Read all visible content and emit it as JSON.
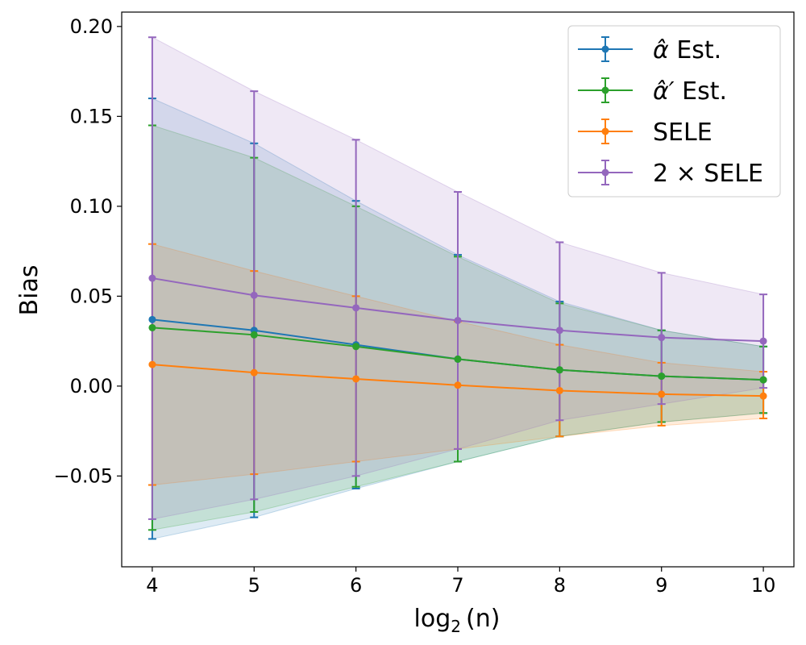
{
  "chart_data": {
    "type": "line",
    "xlabel": "log₂(n)",
    "xlabel_base": "log",
    "xlabel_sub": "2",
    "xlabel_arg": "(n)",
    "ylabel": "Bias",
    "x": [
      4,
      5,
      6,
      7,
      8,
      9,
      10
    ],
    "xlim": [
      3.7,
      10.3
    ],
    "ylim": [
      -0.1005,
      0.208
    ],
    "xticks": [
      "4",
      "5",
      "6",
      "7",
      "8",
      "9",
      "10"
    ],
    "yticks": [
      {
        "value": -0.05,
        "label": "−0.05"
      },
      {
        "value": 0.0,
        "label": "0.00"
      },
      {
        "value": 0.05,
        "label": "0.05"
      },
      {
        "value": 0.1,
        "label": "0.10"
      },
      {
        "value": 0.15,
        "label": "0.15"
      },
      {
        "value": 0.2,
        "label": "0.20"
      }
    ],
    "grid": false,
    "legend_position": "top-right",
    "series": [
      {
        "name_main": "α̂",
        "name_suffix": " Est.",
        "color": "#1f77b4",
        "values": [
          0.037,
          0.031,
          0.023,
          0.015,
          0.009,
          0.0055,
          0.0035
        ],
        "lower": [
          -0.085,
          -0.073,
          -0.057,
          -0.042,
          -0.028,
          -0.02,
          -0.015
        ],
        "upper": [
          0.16,
          0.135,
          0.103,
          0.073,
          0.047,
          0.031,
          0.022
        ]
      },
      {
        "name_main": "α̂′",
        "name_suffix": " Est.",
        "color": "#2ca02c",
        "values": [
          0.0325,
          0.0285,
          0.022,
          0.015,
          0.009,
          0.0055,
          0.0035
        ],
        "lower": [
          -0.08,
          -0.07,
          -0.056,
          -0.042,
          -0.028,
          -0.02,
          -0.015
        ],
        "upper": [
          0.145,
          0.127,
          0.1,
          0.072,
          0.046,
          0.031,
          0.022
        ]
      },
      {
        "name_main": "SELE",
        "name_suffix": "",
        "color": "#ff7f0e",
        "values": [
          0.012,
          0.0075,
          0.004,
          0.0005,
          -0.0025,
          -0.0045,
          -0.0055
        ],
        "lower": [
          -0.055,
          -0.049,
          -0.042,
          -0.035,
          -0.028,
          -0.022,
          -0.018
        ],
        "upper": [
          0.079,
          0.064,
          0.05,
          0.036,
          0.023,
          0.013,
          0.008
        ]
      },
      {
        "name_main": "2 × SELE",
        "name_suffix": "",
        "color": "#9467bd",
        "values": [
          0.06,
          0.0505,
          0.0435,
          0.0365,
          0.031,
          0.027,
          0.025
        ],
        "lower": [
          -0.074,
          -0.063,
          -0.05,
          -0.035,
          -0.019,
          -0.01,
          -0.001
        ],
        "upper": [
          0.194,
          0.164,
          0.137,
          0.108,
          0.08,
          0.063,
          0.051
        ]
      }
    ]
  }
}
